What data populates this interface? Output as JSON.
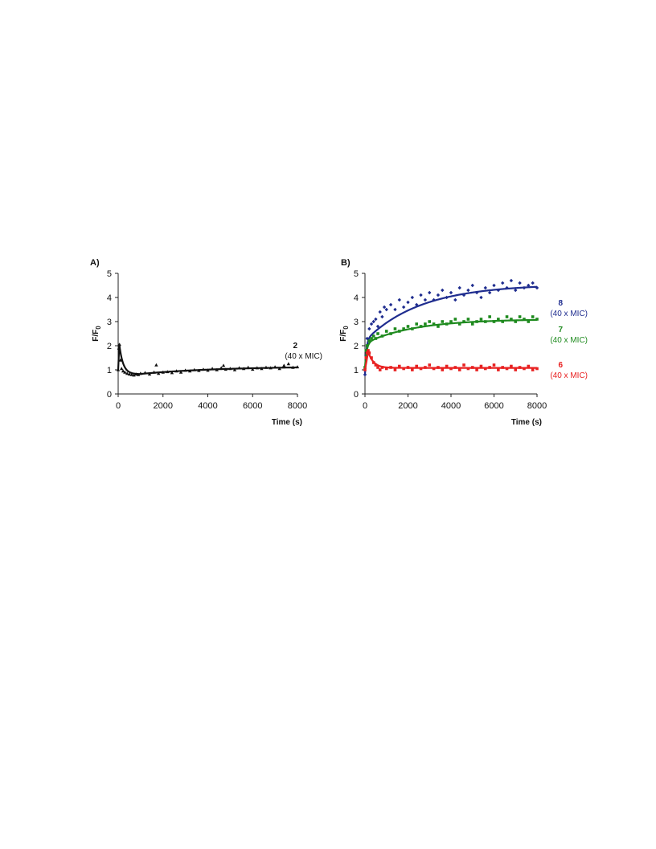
{
  "chart_data": [
    {
      "panel": "A)",
      "type": "scatter",
      "xlabel": "Time (s)",
      "ylabel": "F/F",
      "ylabel_sub": "0",
      "xlim": [
        0,
        8000
      ],
      "ylim": [
        0,
        5
      ],
      "xticks": [
        "0",
        "2000",
        "4000",
        "6000",
        "8000"
      ],
      "yticks": [
        "0",
        "1",
        "2",
        "3",
        "4",
        "5"
      ],
      "series": [
        {
          "name": "2",
          "annotation": "(40 x MIC)",
          "color": "#111111",
          "marker": "triangle",
          "fit": {
            "kind": "spike_decay",
            "y_start": 1.0,
            "y_peak": 2.05,
            "t_peak": 50,
            "y_min": 0.82,
            "t_min": 900,
            "y_end": 1.1
          },
          "points": [
            [
              0,
              1.0
            ],
            [
              30,
              1.9
            ],
            [
              60,
              2.05
            ],
            [
              100,
              1.4
            ],
            [
              150,
              1.05
            ],
            [
              220,
              0.95
            ],
            [
              300,
              0.9
            ],
            [
              400,
              0.85
            ],
            [
              500,
              0.82
            ],
            [
              600,
              0.8
            ],
            [
              700,
              0.78
            ],
            [
              800,
              0.82
            ],
            [
              900,
              0.8
            ],
            [
              1000,
              0.85
            ],
            [
              1200,
              0.88
            ],
            [
              1400,
              0.82
            ],
            [
              1600,
              0.9
            ],
            [
              1700,
              1.2
            ],
            [
              1800,
              0.85
            ],
            [
              2000,
              0.9
            ],
            [
              2200,
              0.92
            ],
            [
              2400,
              0.88
            ],
            [
              2600,
              0.95
            ],
            [
              2800,
              0.9
            ],
            [
              3000,
              0.98
            ],
            [
              3200,
              0.95
            ],
            [
              3400,
              1.0
            ],
            [
              3600,
              0.97
            ],
            [
              3800,
              1.02
            ],
            [
              4000,
              0.98
            ],
            [
              4200,
              1.05
            ],
            [
              4400,
              1.0
            ],
            [
              4600,
              1.08
            ],
            [
              4700,
              1.18
            ],
            [
              4800,
              1.02
            ],
            [
              5000,
              1.05
            ],
            [
              5200,
              1.0
            ],
            [
              5400,
              1.08
            ],
            [
              5600,
              1.05
            ],
            [
              5800,
              1.1
            ],
            [
              6000,
              1.02
            ],
            [
              6200,
              1.08
            ],
            [
              6400,
              1.05
            ],
            [
              6600,
              1.1
            ],
            [
              6800,
              1.08
            ],
            [
              7000,
              1.12
            ],
            [
              7200,
              1.05
            ],
            [
              7400,
              1.18
            ],
            [
              7600,
              1.25
            ],
            [
              7800,
              1.1
            ],
            [
              8000,
              1.12
            ]
          ]
        }
      ]
    },
    {
      "panel": "B)",
      "type": "scatter",
      "xlabel": "Time (s)",
      "ylabel": "F/F",
      "ylabel_sub": "0",
      "xlim": [
        0,
        8000
      ],
      "ylim": [
        0,
        5
      ],
      "xticks": [
        "0",
        "2000",
        "4000",
        "6000",
        "8000"
      ],
      "yticks": [
        "0",
        "1",
        "2",
        "3",
        "4",
        "5"
      ],
      "series": [
        {
          "name": "8",
          "annotation": "(40 x MIC)",
          "color": "#1f2d8f",
          "marker": "diamond",
          "fit": {
            "kind": "rise",
            "y0": 0.8,
            "jump": 1.4,
            "tau_fast": 60,
            "y_end": 4.55,
            "tau_slow": 2600
          },
          "points": [
            [
              0,
              0.8
            ],
            [
              50,
              1.6
            ],
            [
              100,
              2.3
            ],
            [
              200,
              2.7
            ],
            [
              300,
              2.9
            ],
            [
              400,
              3.0
            ],
            [
              500,
              3.1
            ],
            [
              600,
              2.8
            ],
            [
              700,
              3.4
            ],
            [
              800,
              3.2
            ],
            [
              900,
              3.6
            ],
            [
              1000,
              3.5
            ],
            [
              1200,
              3.7
            ],
            [
              1400,
              3.5
            ],
            [
              1600,
              3.9
            ],
            [
              1800,
              3.6
            ],
            [
              2000,
              3.8
            ],
            [
              2200,
              4.0
            ],
            [
              2400,
              3.7
            ],
            [
              2600,
              4.1
            ],
            [
              2800,
              3.9
            ],
            [
              3000,
              4.2
            ],
            [
              3200,
              3.9
            ],
            [
              3400,
              4.1
            ],
            [
              3600,
              4.3
            ],
            [
              3800,
              4.0
            ],
            [
              4000,
              4.2
            ],
            [
              4200,
              3.9
            ],
            [
              4400,
              4.4
            ],
            [
              4600,
              4.1
            ],
            [
              4800,
              4.3
            ],
            [
              5000,
              4.5
            ],
            [
              5200,
              4.2
            ],
            [
              5400,
              4.0
            ],
            [
              5600,
              4.4
            ],
            [
              5800,
              4.2
            ],
            [
              6000,
              4.5
            ],
            [
              6200,
              4.3
            ],
            [
              6400,
              4.6
            ],
            [
              6600,
              4.4
            ],
            [
              6800,
              4.7
            ],
            [
              7000,
              4.3
            ],
            [
              7200,
              4.6
            ],
            [
              7400,
              4.4
            ],
            [
              7600,
              4.5
            ],
            [
              7800,
              4.6
            ],
            [
              8000,
              4.4
            ]
          ]
        },
        {
          "name": "7",
          "annotation": "(40 x MIC)",
          "color": "#1e8a1e",
          "marker": "square",
          "fit": {
            "kind": "rise",
            "y0": 1.1,
            "jump": 1.0,
            "tau_fast": 80,
            "y_end": 3.1,
            "tau_slow": 2300
          },
          "points": [
            [
              0,
              1.1
            ],
            [
              50,
              1.8
            ],
            [
              100,
              2.0
            ],
            [
              200,
              2.2
            ],
            [
              300,
              2.3
            ],
            [
              400,
              2.4
            ],
            [
              500,
              2.3
            ],
            [
              600,
              2.5
            ],
            [
              800,
              2.4
            ],
            [
              1000,
              2.6
            ],
            [
              1200,
              2.5
            ],
            [
              1400,
              2.7
            ],
            [
              1600,
              2.6
            ],
            [
              1800,
              2.7
            ],
            [
              2000,
              2.8
            ],
            [
              2200,
              2.7
            ],
            [
              2400,
              2.9
            ],
            [
              2600,
              2.8
            ],
            [
              2800,
              2.9
            ],
            [
              3000,
              3.0
            ],
            [
              3200,
              2.9
            ],
            [
              3400,
              2.8
            ],
            [
              3600,
              3.0
            ],
            [
              3800,
              2.9
            ],
            [
              4000,
              3.0
            ],
            [
              4200,
              3.1
            ],
            [
              4400,
              2.9
            ],
            [
              4600,
              3.0
            ],
            [
              4800,
              3.1
            ],
            [
              5000,
              2.9
            ],
            [
              5200,
              3.0
            ],
            [
              5400,
              3.1
            ],
            [
              5600,
              3.0
            ],
            [
              5800,
              3.2
            ],
            [
              6000,
              3.0
            ],
            [
              6200,
              3.1
            ],
            [
              6400,
              3.0
            ],
            [
              6600,
              3.2
            ],
            [
              6800,
              3.1
            ],
            [
              7000,
              3.0
            ],
            [
              7200,
              3.2
            ],
            [
              7400,
              3.1
            ],
            [
              7600,
              3.0
            ],
            [
              7800,
              3.2
            ],
            [
              8000,
              3.1
            ]
          ]
        },
        {
          "name": "6",
          "annotation": "(40 x MIC)",
          "color": "#e82020",
          "marker": "square",
          "fit": {
            "kind": "spike",
            "y_start": 1.0,
            "y_peak": 1.75,
            "t_peak": 150,
            "y_end": 1.08,
            "tau_decay": 250
          },
          "points": [
            [
              0,
              1.0
            ],
            [
              50,
              1.5
            ],
            [
              100,
              1.7
            ],
            [
              150,
              1.8
            ],
            [
              200,
              1.7
            ],
            [
              300,
              1.5
            ],
            [
              400,
              1.3
            ],
            [
              500,
              1.2
            ],
            [
              600,
              1.1
            ],
            [
              700,
              1.0
            ],
            [
              800,
              1.1
            ],
            [
              1000,
              1.05
            ],
            [
              1200,
              1.1
            ],
            [
              1400,
              1.0
            ],
            [
              1600,
              1.15
            ],
            [
              1800,
              1.05
            ],
            [
              2000,
              1.1
            ],
            [
              2200,
              1.0
            ],
            [
              2400,
              1.15
            ],
            [
              2600,
              1.05
            ],
            [
              2800,
              1.1
            ],
            [
              3000,
              1.2
            ],
            [
              3200,
              1.05
            ],
            [
              3400,
              1.1
            ],
            [
              3600,
              1.0
            ],
            [
              3800,
              1.15
            ],
            [
              4000,
              1.05
            ],
            [
              4200,
              1.1
            ],
            [
              4400,
              1.0
            ],
            [
              4600,
              1.2
            ],
            [
              4800,
              1.05
            ],
            [
              5000,
              1.1
            ],
            [
              5200,
              1.0
            ],
            [
              5400,
              1.15
            ],
            [
              5600,
              1.05
            ],
            [
              5800,
              1.1
            ],
            [
              6000,
              1.2
            ],
            [
              6200,
              1.0
            ],
            [
              6400,
              1.1
            ],
            [
              6600,
              1.05
            ],
            [
              6800,
              1.15
            ],
            [
              7000,
              1.0
            ],
            [
              7200,
              1.1
            ],
            [
              7400,
              1.05
            ],
            [
              7600,
              1.15
            ],
            [
              7800,
              1.0
            ],
            [
              8000,
              1.05
            ]
          ]
        }
      ]
    }
  ]
}
